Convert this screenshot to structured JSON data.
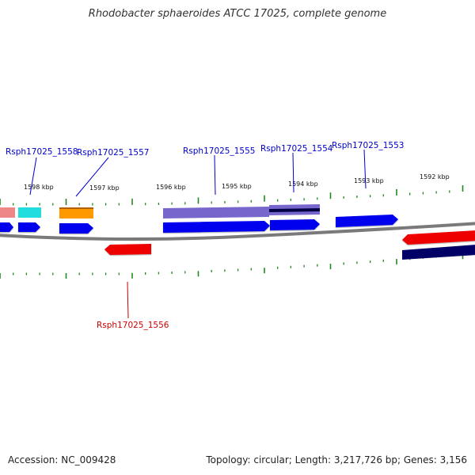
{
  "title": "Rhodobacter sphaeroides ATCC 17025, complete genome",
  "footer": {
    "accession": "Accession: NC_009428",
    "summary": "Topology: circular; Length: 3,217,726 bp; Genes: 3,156"
  },
  "colors": {
    "backbone": "#7a7a7a",
    "tick": "#1e8a1e",
    "forward_cds": "#0000ee",
    "reverse_cds": "#ee0000",
    "label_forward": "#0000cc",
    "label_reverse": "#cc0000",
    "track_pink": "#ee8888",
    "track_cyan": "#22dddd",
    "track_orange": "#ff9900",
    "track_purple": "#7766cc",
    "track_navy": "#000066"
  },
  "kbp_marks": [
    "1598 kbp",
    "1597 kbp",
    "1596 kbp",
    "1595 kbp",
    "1594 kbp",
    "1593 kbp",
    "1592 kbp"
  ],
  "gene_labels": {
    "forward": [
      "Rsph17025_1558",
      "Rsph17025_1557",
      "Rsph17025_1555",
      "Rsph17025_1554",
      "Rsph17025_1553"
    ],
    "reverse": [
      "Rsph17025_1556"
    ]
  }
}
